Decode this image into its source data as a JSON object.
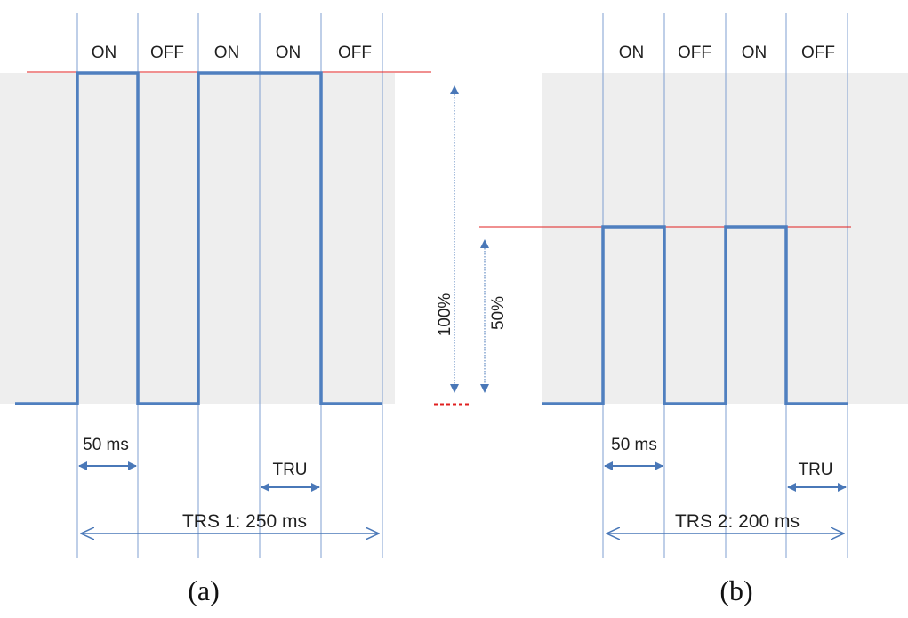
{
  "panel_a": {
    "states": [
      "ON",
      "OFF",
      "ON",
      "ON",
      "OFF"
    ],
    "unit_label": "50 ms",
    "tru_label": "TRU",
    "trs_label": "TRS 1: 250 ms",
    "caption": "(a)"
  },
  "panel_b": {
    "states": [
      "ON",
      "OFF",
      "ON",
      "OFF"
    ],
    "unit_label": "50 ms",
    "tru_label": "TRU",
    "trs_label": "TRS 2: 200 ms",
    "caption": "(b)"
  },
  "scale": {
    "full_label": "100%",
    "half_label": "50%"
  },
  "colors": {
    "signal": "#4f7fbf",
    "grid": "#7f9fd0",
    "arrow": "#4a78b8",
    "threshold": "#e02020",
    "shade": "#eeeeee"
  }
}
